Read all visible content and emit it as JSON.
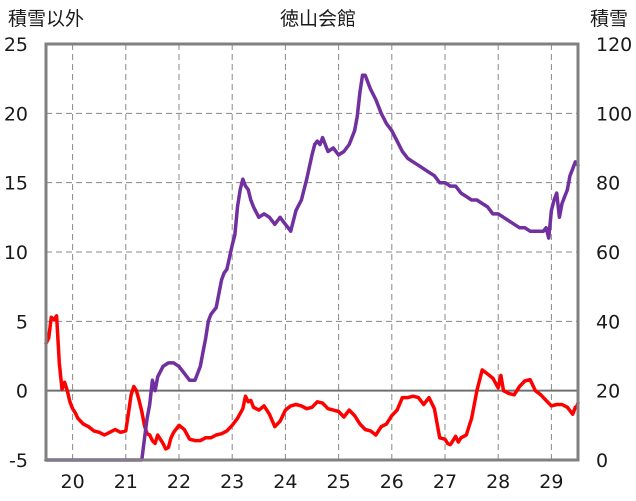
{
  "chart_data": {
    "type": "line",
    "title": "徳山会館",
    "left_axis": {
      "label": "積雪以外",
      "ylim": [
        -5,
        25
      ],
      "ticks": [
        -5,
        0,
        5,
        10,
        15,
        20,
        25
      ]
    },
    "right_axis": {
      "label": "積雪",
      "ylim": [
        0,
        120
      ],
      "ticks": [
        0,
        20,
        40,
        60,
        80,
        100,
        120
      ]
    },
    "x_axis": {
      "xlim": [
        19.5,
        29.5
      ],
      "ticks": [
        20,
        21,
        22,
        23,
        24,
        25,
        26,
        27,
        28,
        29
      ]
    },
    "grid": {
      "vertical": "dashed",
      "horizontal": "dashed",
      "zero_line": "solid"
    },
    "series": [
      {
        "axis": "left",
        "color": "#ff0000",
        "x": [
          19.5,
          19.55,
          19.6,
          19.65,
          19.7,
          19.75,
          19.8,
          19.85,
          19.9,
          19.95,
          20.0,
          20.05,
          20.1,
          20.2,
          20.3,
          20.4,
          20.5,
          20.6,
          20.7,
          20.8,
          20.9,
          21.0,
          21.05,
          21.1,
          21.15,
          21.2,
          21.25,
          21.3,
          21.35,
          21.4,
          21.45,
          21.5,
          21.55,
          21.6,
          21.7,
          21.75,
          21.8,
          21.85,
          21.9,
          22.0,
          22.1,
          22.2,
          22.3,
          22.4,
          22.5,
          22.6,
          22.7,
          22.8,
          22.9,
          23.0,
          23.1,
          23.2,
          23.25,
          23.3,
          23.35,
          23.4,
          23.5,
          23.6,
          23.7,
          23.8,
          23.9,
          24.0,
          24.1,
          24.2,
          24.3,
          24.4,
          24.5,
          24.6,
          24.7,
          24.8,
          24.9,
          25.0,
          25.1,
          25.2,
          25.3,
          25.4,
          25.5,
          25.6,
          25.7,
          25.8,
          25.9,
          26.0,
          26.1,
          26.2,
          26.3,
          26.4,
          26.5,
          26.6,
          26.7,
          26.8,
          26.9,
          27.0,
          27.05,
          27.1,
          27.15,
          27.2,
          27.25,
          27.3,
          27.35,
          27.4,
          27.5,
          27.6,
          27.7,
          27.8,
          27.9,
          28.0,
          28.05,
          28.1,
          28.2,
          28.3,
          28.4,
          28.5,
          28.6,
          28.7,
          28.8,
          28.9,
          29.0,
          29.1,
          29.2,
          29.3,
          29.4,
          29.45
        ],
        "y": [
          3.4,
          3.8,
          5.3,
          5.1,
          5.4,
          2.0,
          0.1,
          0.6,
          0.0,
          -0.8,
          -1.3,
          -1.6,
          -2.0,
          -2.4,
          -2.6,
          -2.9,
          -3.0,
          -3.2,
          -3.0,
          -2.8,
          -3.0,
          -2.9,
          -1.6,
          -0.3,
          0.3,
          0.0,
          -0.7,
          -1.5,
          -2.5,
          -3.1,
          -3.2,
          -3.6,
          -3.8,
          -3.2,
          -3.8,
          -4.2,
          -4.1,
          -3.4,
          -3.0,
          -2.5,
          -2.8,
          -3.5,
          -3.6,
          -3.6,
          -3.4,
          -3.4,
          -3.2,
          -3.1,
          -2.9,
          -2.5,
          -2.0,
          -1.3,
          -0.4,
          -0.8,
          -0.7,
          -1.2,
          -1.4,
          -1.1,
          -1.7,
          -2.6,
          -2.2,
          -1.4,
          -1.1,
          -1.0,
          -1.1,
          -1.3,
          -1.2,
          -0.8,
          -0.9,
          -1.3,
          -1.4,
          -1.5,
          -1.9,
          -1.4,
          -1.8,
          -2.4,
          -2.8,
          -2.9,
          -3.2,
          -2.6,
          -2.4,
          -1.8,
          -1.4,
          -0.5,
          -0.5,
          -0.4,
          -0.5,
          -1.0,
          -0.5,
          -1.3,
          -3.4,
          -3.5,
          -3.8,
          -3.9,
          -3.6,
          -3.3,
          -3.7,
          -3.4,
          -3.3,
          -3.2,
          -2.0,
          0.0,
          1.5,
          1.2,
          0.9,
          0.2,
          1.1,
          0.0,
          -0.2,
          -0.3,
          0.3,
          0.7,
          0.8,
          0.0,
          -0.3,
          -0.7,
          -1.1,
          -1.0,
          -1.0,
          -1.2,
          -1.7,
          -1.2
        ],
        "y_extra_points": {
          "x": [
            29.47,
            29.5
          ],
          "y": [
            -1.2,
            -0.9
          ]
        }
      },
      {
        "axis": "right",
        "color": "#7030a0",
        "x": [
          19.5,
          19.7,
          19.9,
          20.1,
          20.3,
          20.5,
          20.7,
          20.9,
          21.1,
          21.25,
          21.3,
          21.35,
          21.4,
          21.45,
          21.5,
          21.55,
          21.6,
          21.7,
          21.8,
          21.9,
          22.0,
          22.1,
          22.2,
          22.3,
          22.4,
          22.45,
          22.5,
          22.55,
          22.6,
          22.7,
          22.8,
          22.85,
          22.9,
          23.0,
          23.05,
          23.1,
          23.15,
          23.2,
          23.25,
          23.3,
          23.35,
          23.4,
          23.5,
          23.6,
          23.7,
          23.8,
          23.9,
          24.0,
          24.05,
          24.1,
          24.2,
          24.3,
          24.4,
          24.5,
          24.55,
          24.6,
          24.65,
          24.7,
          24.8,
          24.9,
          25.0,
          25.1,
          25.2,
          25.3,
          25.35,
          25.4,
          25.45,
          25.5,
          25.6,
          25.7,
          25.8,
          25.9,
          26.0,
          26.1,
          26.2,
          26.3,
          26.4,
          26.5,
          26.6,
          26.7,
          26.8,
          26.9,
          27.0,
          27.1,
          27.2,
          27.3,
          27.4,
          27.5,
          27.6,
          27.7,
          27.8,
          27.9,
          28.0,
          28.1,
          28.2,
          28.3,
          28.4,
          28.5,
          28.6,
          28.7,
          28.8,
          28.85,
          28.9,
          28.95,
          29.0,
          29.05,
          29.1,
          29.15,
          29.2,
          29.3,
          29.35,
          29.4,
          29.45,
          29.5
        ],
        "y": [
          0,
          0,
          0,
          0,
          0,
          0,
          0,
          0,
          0,
          0,
          0,
          6,
          12,
          16,
          23,
          20,
          24,
          27,
          28,
          28,
          27,
          25,
          23,
          23,
          27,
          31,
          35,
          40,
          42,
          44,
          52,
          54,
          55,
          62,
          65,
          73,
          78,
          81,
          79,
          78,
          75,
          73,
          70,
          71,
          70,
          68,
          70,
          68,
          67,
          66,
          72,
          75,
          81,
          88,
          91,
          92,
          91,
          93,
          89,
          90,
          88,
          89,
          91,
          95,
          99,
          106,
          111,
          111,
          107,
          104,
          100,
          97,
          95,
          92,
          89,
          87,
          86,
          85,
          84,
          83,
          82,
          80,
          80,
          79,
          79,
          77,
          76,
          75,
          75,
          74,
          73,
          71,
          71,
          70,
          69,
          68,
          67,
          67,
          66,
          66,
          66,
          66,
          67,
          64,
          72,
          75,
          77,
          70,
          74,
          78,
          82,
          84,
          86,
          85
        ]
      }
    ]
  }
}
